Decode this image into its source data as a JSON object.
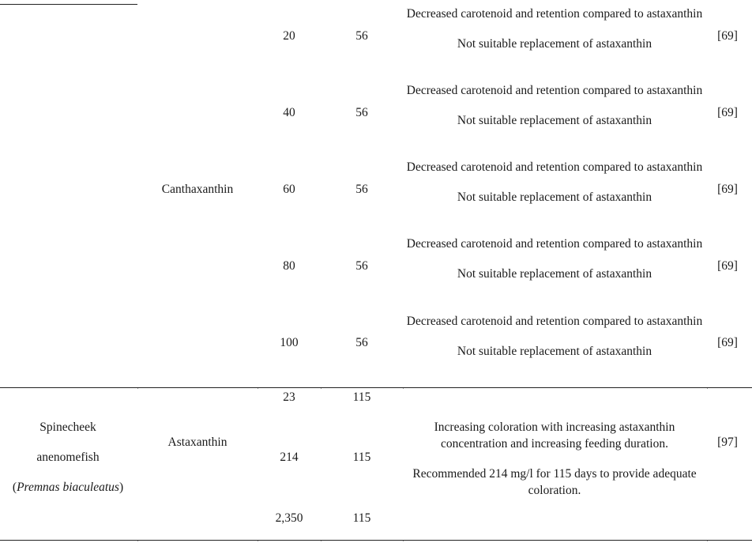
{
  "canthaxanthin_group": {
    "pigment": "Canthaxanthin",
    "rows": [
      {
        "dose": "20",
        "days": "56",
        "observation_1": "Decreased carotenoid and retention compared to astaxanthin",
        "observation_2": "Not suitable replacement of astaxanthin",
        "ref": "[69]"
      },
      {
        "dose": "40",
        "days": "56",
        "observation_1": "Decreased carotenoid and retention compared to astaxanthin",
        "observation_2": "Not suitable replacement of astaxanthin",
        "ref": "[69]"
      },
      {
        "dose": "60",
        "days": "56",
        "observation_1": "Decreased carotenoid and retention compared to astaxanthin",
        "observation_2": "Not suitable replacement of astaxanthin",
        "ref": "[69]"
      },
      {
        "dose": "80",
        "days": "56",
        "observation_1": "Decreased carotenoid and retention compared to astaxanthin",
        "observation_2": "Not suitable replacement of astaxanthin",
        "ref": "[69]"
      }
    ],
    "last_row": {
      "dose": "100",
      "days": "56",
      "observation_1": "Decreased carotenoid and retention compared to astaxanthin",
      "observation_2": "Not suitable replacement of astaxanthin",
      "ref": "[69]"
    }
  },
  "anemone_group": {
    "species_line_1": "Spinecheek",
    "species_line_2": "anenomefish",
    "scientific_open": "(",
    "scientific_name": "Premnas biaculeatus",
    "scientific_close": ")",
    "pigment": "Astaxanthin",
    "doses": [
      {
        "dose": "23",
        "days": "115"
      },
      {
        "dose": "214",
        "days": "115"
      },
      {
        "dose": "2,350",
        "days": "115"
      }
    ],
    "observation_1": "Increasing coloration with increasing astaxanthin concentration and increasing feeding duration.",
    "observation_2": "Recommended 214 mg/l for 115 days to provide adequate coloration.",
    "ref": "[97]"
  }
}
